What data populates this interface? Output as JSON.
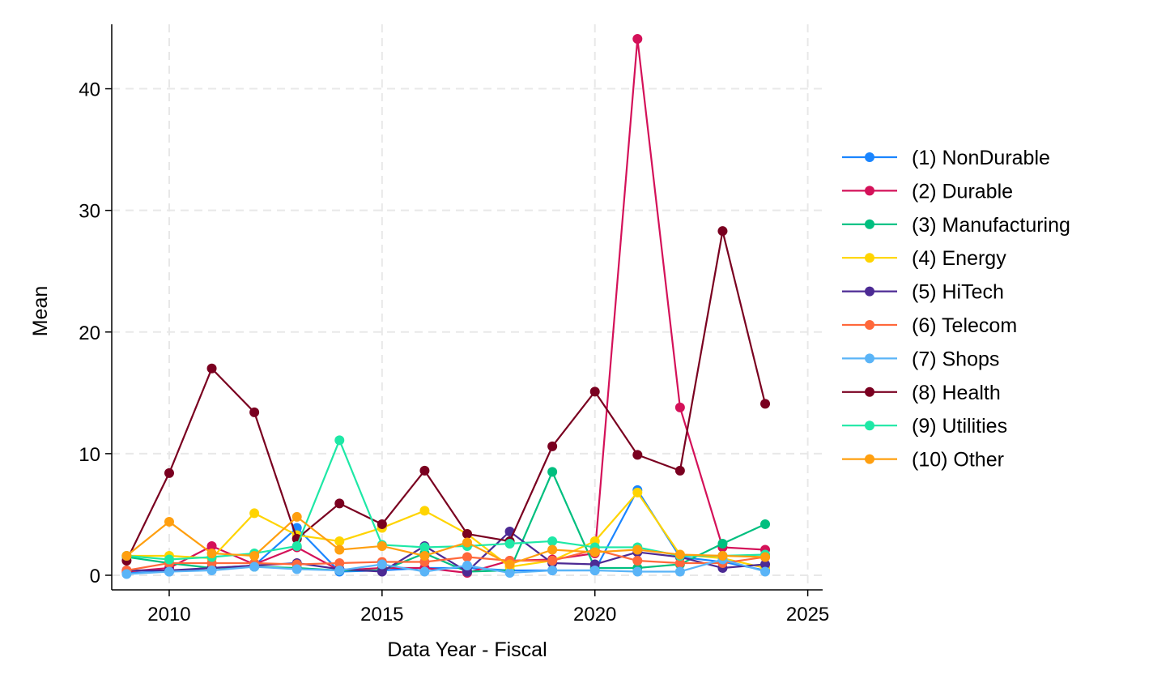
{
  "chart_data": {
    "type": "line",
    "title": "",
    "xlabel": "Data Year - Fiscal",
    "ylabel": "Mean",
    "xlim": [
      2008.65,
      2025.35
    ],
    "ylim": [
      -1.2,
      45.3
    ],
    "xticks": [
      2010,
      2015,
      2020,
      2025
    ],
    "yticks": [
      0,
      10,
      20,
      30,
      40
    ],
    "grid": true,
    "legend_position": "right",
    "x": [
      2009,
      2010,
      2011,
      2012,
      2013,
      2014,
      2015,
      2016,
      2017,
      2018,
      2019,
      2020,
      2021,
      2022,
      2023,
      2024
    ],
    "series": [
      {
        "name": "(1) NonDurable",
        "color": "#1a85ff",
        "values": [
          0.2,
          0.3,
          0.6,
          0.8,
          3.9,
          0.3,
          0.4,
          0.6,
          0.6,
          0.4,
          0.4,
          0.4,
          7.0,
          1.5,
          1.1,
          0.4
        ]
      },
      {
        "name": "(2) Durable",
        "color": "#d41159",
        "values": [
          0.3,
          0.6,
          2.4,
          0.9,
          2.3,
          0.4,
          0.6,
          0.6,
          0.2,
          1.2,
          1.3,
          1.8,
          44.1,
          13.8,
          2.3,
          2.1
        ]
      },
      {
        "name": "(3) Manufacturing",
        "color": "#00bf7f",
        "values": [
          1.5,
          1.0,
          0.6,
          0.7,
          0.6,
          0.4,
          0.4,
          1.8,
          0.3,
          0.4,
          8.5,
          0.6,
          0.6,
          0.9,
          2.6,
          4.2
        ]
      },
      {
        "name": "(4) Energy",
        "color": "#ffd400",
        "values": [
          1.6,
          1.6,
          1.4,
          5.1,
          3.3,
          2.8,
          3.9,
          5.3,
          3.4,
          0.7,
          1.2,
          2.8,
          6.8,
          1.7,
          1.4,
          0.6
        ]
      },
      {
        "name": "(5) HiTech",
        "color": "#4c2a94",
        "values": [
          0.4,
          0.4,
          0.6,
          0.8,
          1.0,
          0.5,
          0.3,
          2.4,
          0.3,
          3.6,
          1.0,
          0.9,
          1.9,
          1.5,
          0.6,
          0.9
        ]
      },
      {
        "name": "(6) Telecom",
        "color": "#ff683b",
        "values": [
          0.4,
          1.0,
          1.0,
          1.0,
          0.9,
          1.0,
          1.1,
          1.1,
          1.5,
          1.2,
          1.2,
          2.1,
          1.2,
          1.0,
          1.0,
          1.5
        ]
      },
      {
        "name": "(7) Shops",
        "color": "#5ab4f7",
        "values": [
          0.1,
          0.3,
          0.4,
          0.7,
          0.5,
          0.4,
          0.9,
          0.3,
          0.8,
          0.2,
          0.4,
          0.4,
          0.3,
          0.3,
          1.3,
          0.3
        ]
      },
      {
        "name": "(8) Health",
        "color": "#7a0020",
        "values": [
          1.2,
          8.4,
          17.0,
          13.4,
          3.0,
          5.9,
          4.2,
          8.6,
          3.4,
          2.8,
          10.6,
          15.1,
          9.9,
          8.6,
          28.3,
          14.1
        ]
      },
      {
        "name": "(9) Utilities",
        "color": "#1ee8a6",
        "values": [
          1.6,
          1.3,
          1.5,
          1.8,
          2.4,
          11.1,
          2.5,
          2.3,
          2.4,
          2.6,
          2.8,
          2.3,
          2.3,
          1.6,
          1.6,
          1.7
        ]
      },
      {
        "name": "(10) Other",
        "color": "#ff9f0f",
        "values": [
          1.6,
          4.4,
          1.8,
          1.6,
          4.8,
          2.1,
          2.4,
          1.6,
          2.7,
          0.9,
          2.1,
          1.9,
          2.1,
          1.7,
          1.6,
          1.5
        ]
      }
    ]
  }
}
